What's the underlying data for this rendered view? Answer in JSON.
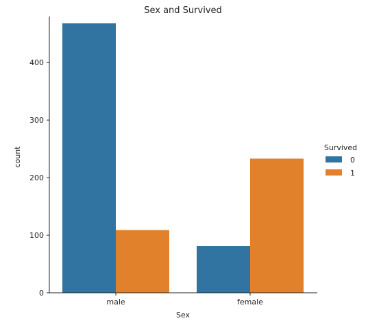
{
  "chart_data": {
    "type": "bar",
    "title": "Sex and Survived",
    "xlabel": "Sex",
    "ylabel": "count",
    "categories": [
      "male",
      "female"
    ],
    "series": [
      {
        "name": "0",
        "values": [
          468,
          81
        ],
        "color": "#3274a1"
      },
      {
        "name": "1",
        "values": [
          109,
          233
        ],
        "color": "#e1812c"
      }
    ],
    "ylim": [
      0,
      480
    ],
    "yticks": [
      0,
      100,
      200,
      300,
      400
    ],
    "legend": {
      "title": "Survived",
      "placement": "right"
    },
    "grid": false
  }
}
